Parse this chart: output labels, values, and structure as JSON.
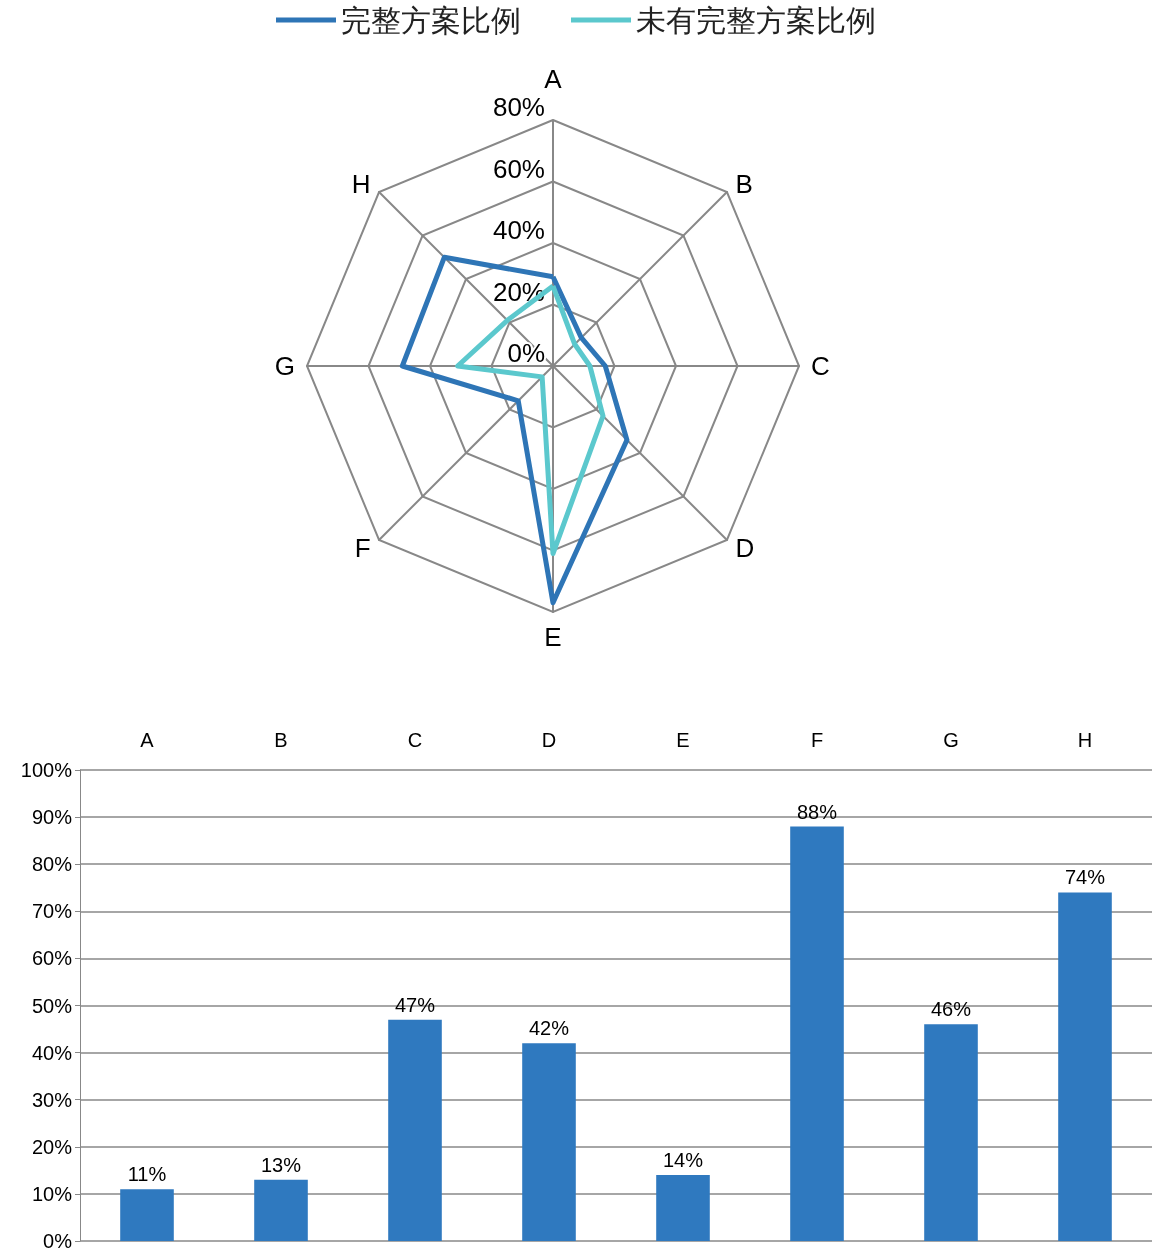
{
  "chart_data": [
    {
      "type": "radar",
      "legend": "top",
      "categories": [
        "A",
        "B",
        "C",
        "D",
        "E",
        "F",
        "G",
        "H"
      ],
      "ylim": [
        0,
        80
      ],
      "yticks": [
        {
          "value": 0,
          "label": "0%"
        },
        {
          "value": 20,
          "label": "20%"
        },
        {
          "value": 40,
          "label": "40%"
        },
        {
          "value": 60,
          "label": "60%"
        },
        {
          "value": 80,
          "label": "80%"
        }
      ],
      "grid": true,
      "series": [
        {
          "name": "完整方案比例",
          "color": "#2e75b6",
          "values": [
            29,
            13,
            17,
            34,
            77,
            16,
            49,
            50
          ]
        },
        {
          "name": "未有完整方案比例",
          "color": "#5bc8cd",
          "values": [
            26,
            10,
            12,
            23,
            61,
            5,
            31,
            21
          ]
        }
      ]
    },
    {
      "type": "bar",
      "categories": [
        "A",
        "B",
        "C",
        "D",
        "E",
        "F",
        "G",
        "H"
      ],
      "values": [
        11,
        13,
        47,
        42,
        14,
        88,
        46,
        74
      ],
      "value_labels": [
        "11%",
        "13%",
        "47%",
        "42%",
        "14%",
        "88%",
        "46%",
        "74%"
      ],
      "color": "#2f79bf",
      "ylim": [
        0,
        100
      ],
      "yticks": [
        {
          "value": 0,
          "label": "0%"
        },
        {
          "value": 10,
          "label": "10%"
        },
        {
          "value": 20,
          "label": "20%"
        },
        {
          "value": 30,
          "label": "30%"
        },
        {
          "value": 40,
          "label": "40%"
        },
        {
          "value": 50,
          "label": "50%"
        },
        {
          "value": 60,
          "label": "60%"
        },
        {
          "value": 70,
          "label": "70%"
        },
        {
          "value": 80,
          "label": "80%"
        },
        {
          "value": 90,
          "label": "90%"
        },
        {
          "value": 100,
          "label": "100%"
        }
      ],
      "grid": "y"
    }
  ]
}
